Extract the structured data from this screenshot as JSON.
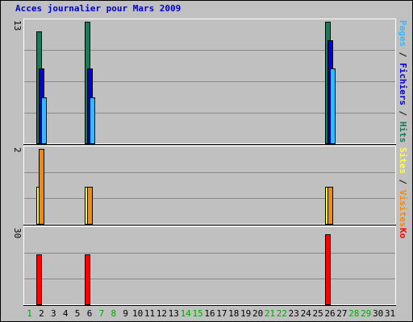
{
  "chart_data": [
    {
      "type": "bar",
      "title": "Acces journalier pour Mars 2009",
      "categories": [
        "1",
        "2",
        "3",
        "4",
        "5",
        "6",
        "7",
        "8",
        "9",
        "10",
        "11",
        "12",
        "13",
        "14",
        "15",
        "16",
        "17",
        "18",
        "19",
        "20",
        "21",
        "22",
        "23",
        "24",
        "25",
        "26",
        "27",
        "28",
        "29",
        "30",
        "31"
      ],
      "weekend_days": [
        "1",
        "7",
        "8",
        "14",
        "15",
        "21",
        "22",
        "28",
        "29"
      ],
      "ymax_label": "13",
      "ylim": [
        0,
        13
      ],
      "legend": [
        "Pages",
        "Fichiers",
        "Hits"
      ],
      "series": [
        {
          "name": "Hits",
          "color": "#1a7a5a",
          "values": {
            "2": 12,
            "6": 13,
            "26": 13
          }
        },
        {
          "name": "Fichiers",
          "color": "#0000e0",
          "values": {
            "2": 8,
            "6": 8,
            "26": 11
          }
        },
        {
          "name": "Pages",
          "color": "#33bbff",
          "values": {
            "2": 5,
            "6": 5,
            "26": 8
          }
        }
      ]
    },
    {
      "type": "bar",
      "ymax_label": "2",
      "ylim": [
        0,
        2
      ],
      "legend": [
        "Sites",
        "Visites"
      ],
      "series": [
        {
          "name": "Sites",
          "color": "#ffff44",
          "values": {
            "2": 1,
            "6": 1,
            "26": 1
          }
        },
        {
          "name": "Visites",
          "color": "#ff8800",
          "values": {
            "2": 2,
            "6": 1,
            "26": 1
          }
        }
      ]
    },
    {
      "type": "bar",
      "ymax_label": "30",
      "ylim": [
        0,
        30
      ],
      "legend": [
        "Ko"
      ],
      "series": [
        {
          "name": "Ko",
          "color": "#ff0000",
          "values": {
            "2": 20,
            "6": 20,
            "26": 28
          }
        }
      ]
    }
  ],
  "colors": {
    "title": "#0000cc",
    "legend_separator": "#000000",
    "weekday": "#000000",
    "weekend": "#00aa00",
    "background": "#c0c0c0",
    "grid": "#888888"
  }
}
